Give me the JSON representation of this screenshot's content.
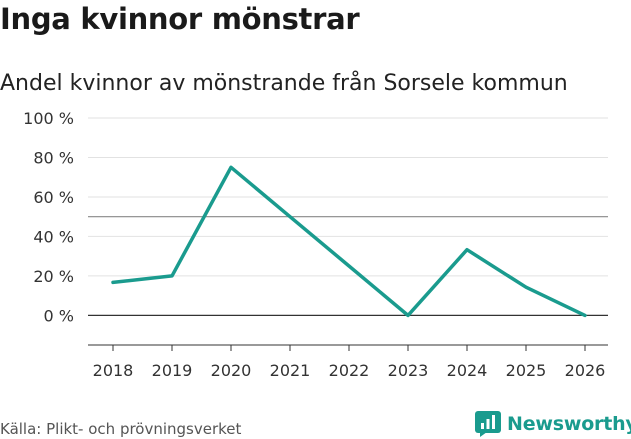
{
  "header": {
    "title": "Inga kvinnor mönstrar",
    "subtitle": "Andel kvinnor av mönstrande från Sorsele kommun"
  },
  "chart_data": {
    "type": "line",
    "title": "Inga kvinnor mönstrar",
    "subtitle": "Andel kvinnor av mönstrande från Sorsele kommun",
    "xlabel": "",
    "ylabel": "",
    "x": [
      "2018",
      "2019",
      "2020",
      "2021",
      "2022",
      "2023",
      "2024",
      "2025",
      "2026"
    ],
    "series": [
      {
        "name": "Andel kvinnor",
        "values": [
          16.7,
          20,
          75,
          50,
          25,
          0,
          33.3,
          14.3,
          0
        ],
        "color": "#1a9b8e"
      }
    ],
    "ylim": [
      -15,
      100
    ],
    "yticks": [
      0,
      20,
      40,
      60,
      80,
      100
    ],
    "ytick_labels": [
      "0 %",
      "20 %",
      "40 %",
      "60 %",
      "80 %",
      "100 %"
    ],
    "reference_line": 50,
    "baseline": 0,
    "grid": true,
    "legend": "none"
  },
  "footer": {
    "source": "Källa: Plikt- och prövningsverket",
    "brand": "Newsworthy"
  },
  "colors": {
    "line": "#1a9b8e",
    "brand": "#1a9b8e",
    "grid": "#e2e2e2",
    "reference": "#888888",
    "axis": "#333333"
  }
}
